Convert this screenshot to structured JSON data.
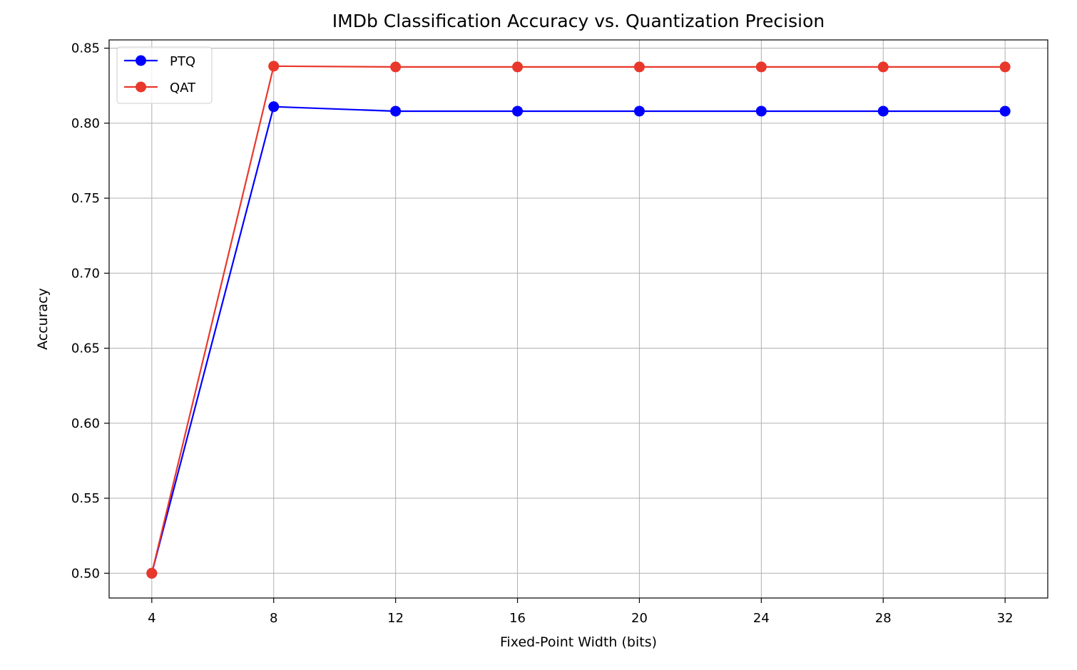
{
  "chart_data": {
    "type": "line",
    "title": "IMDb Classification Accuracy vs. Quantization Precision",
    "xlabel": "Fixed-Point Width (bits)",
    "ylabel": "Accuracy",
    "x": [
      4,
      8,
      12,
      16,
      20,
      24,
      28,
      32
    ],
    "xticks": [
      "4",
      "8",
      "12",
      "16",
      "20",
      "24",
      "28",
      "32"
    ],
    "yticks": [
      "0.50",
      "0.55",
      "0.60",
      "0.65",
      "0.70",
      "0.75",
      "0.80",
      "0.85"
    ],
    "xlim": [
      2.6,
      33.4
    ],
    "ylim": [
      0.4835,
      0.8555
    ],
    "grid": true,
    "legend_position": "top-left",
    "series": [
      {
        "name": "PTQ",
        "color": "#0000ff",
        "marker": "circle",
        "values": [
          0.5,
          0.811,
          0.808,
          0.808,
          0.808,
          0.808,
          0.808,
          0.808
        ]
      },
      {
        "name": "QAT",
        "color": "#e8382b",
        "marker": "circle",
        "values": [
          0.5,
          0.838,
          0.8375,
          0.8375,
          0.8375,
          0.8375,
          0.8375,
          0.8375
        ]
      }
    ]
  }
}
